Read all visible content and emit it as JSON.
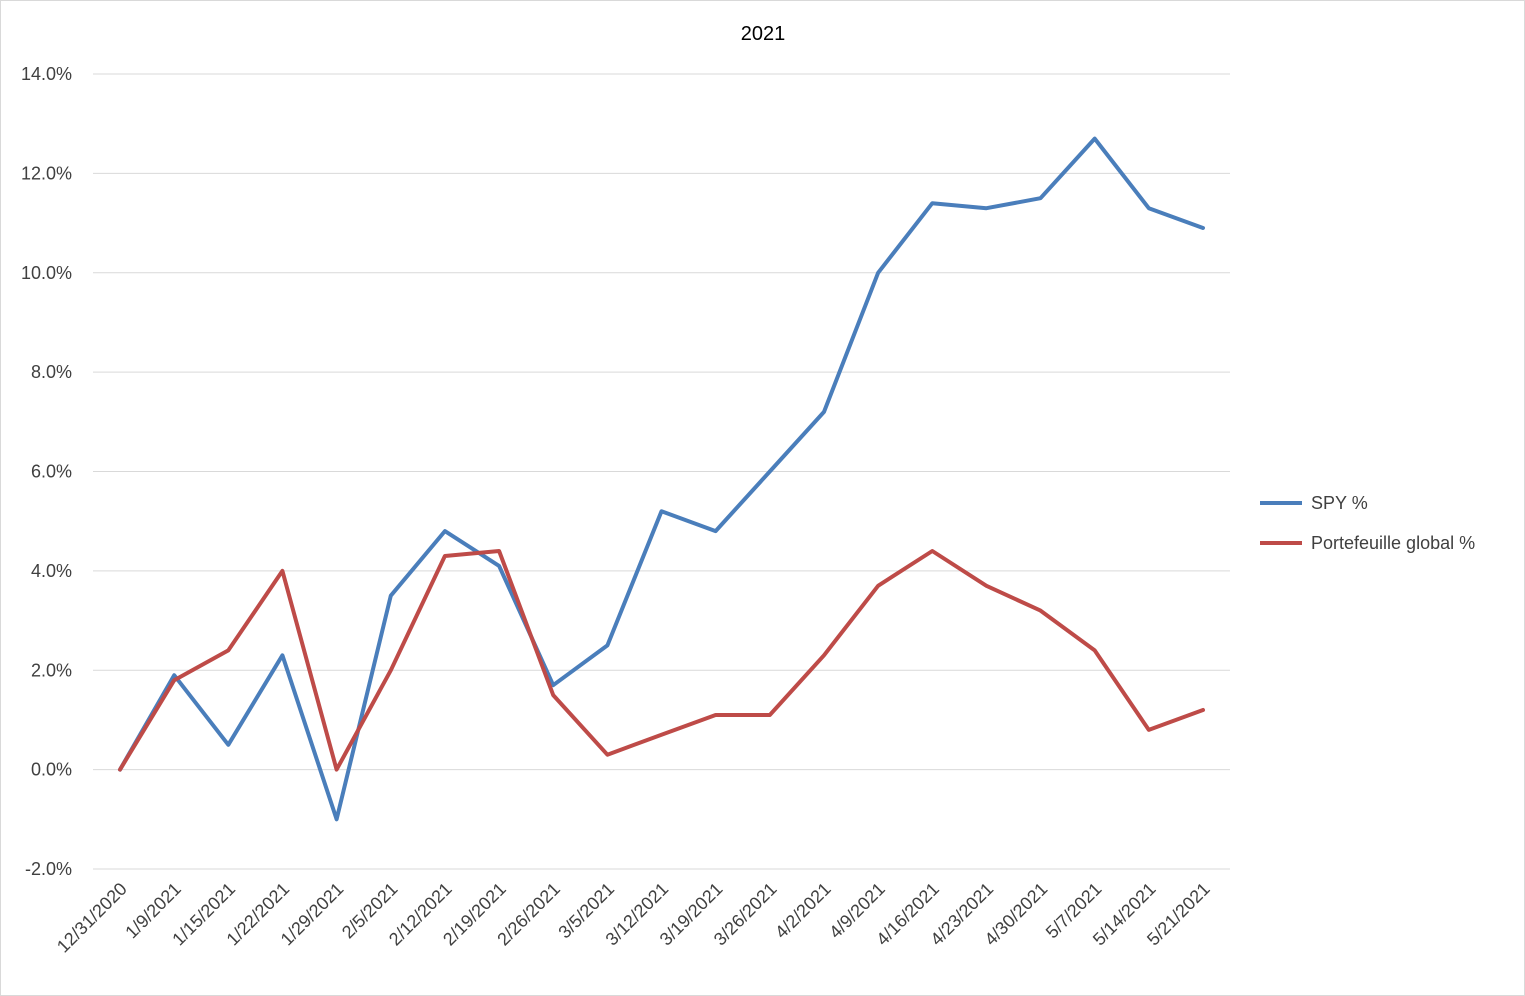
{
  "chart_data": {
    "type": "line",
    "title": "2021",
    "xlabel": "",
    "ylabel": "",
    "categories": [
      "12/31/2020",
      "1/9/2021",
      "1/15/2021",
      "1/22/2021",
      "1/29/2021",
      "2/5/2021",
      "2/12/2021",
      "2/19/2021",
      "2/26/2021",
      "3/5/2021",
      "3/12/2021",
      "3/19/2021",
      "3/26/2021",
      "4/2/2021",
      "4/9/2021",
      "4/16/2021",
      "4/23/2021",
      "4/30/2021",
      "5/7/2021",
      "5/14/2021",
      "5/21/2021"
    ],
    "ylim": [
      -2.0,
      14.0
    ],
    "yticks": [
      -2.0,
      0.0,
      2.0,
      4.0,
      6.0,
      8.0,
      10.0,
      12.0,
      14.0
    ],
    "ytick_labels": [
      "-2.0%",
      "0.0%",
      "2.0%",
      "4.0%",
      "6.0%",
      "8.0%",
      "10.0%",
      "12.0%",
      "14.0%"
    ],
    "grid": true,
    "legend_position": "right",
    "series": [
      {
        "name": "SPY %",
        "color": "#4a7ebb",
        "values": [
          0.0,
          1.9,
          0.5,
          2.3,
          -1.0,
          3.5,
          4.8,
          4.1,
          1.7,
          2.5,
          5.2,
          4.8,
          6.0,
          7.2,
          10.0,
          11.4,
          11.3,
          11.5,
          12.7,
          11.3,
          10.9
        ]
      },
      {
        "name": "Portefeuille global %",
        "color": "#be4b48",
        "values": [
          0.0,
          1.8,
          2.4,
          4.0,
          0.0,
          2.0,
          4.3,
          4.4,
          1.5,
          0.3,
          0.7,
          1.1,
          1.1,
          2.3,
          3.7,
          4.4,
          3.7,
          3.2,
          2.4,
          0.8,
          1.2
        ]
      }
    ]
  }
}
